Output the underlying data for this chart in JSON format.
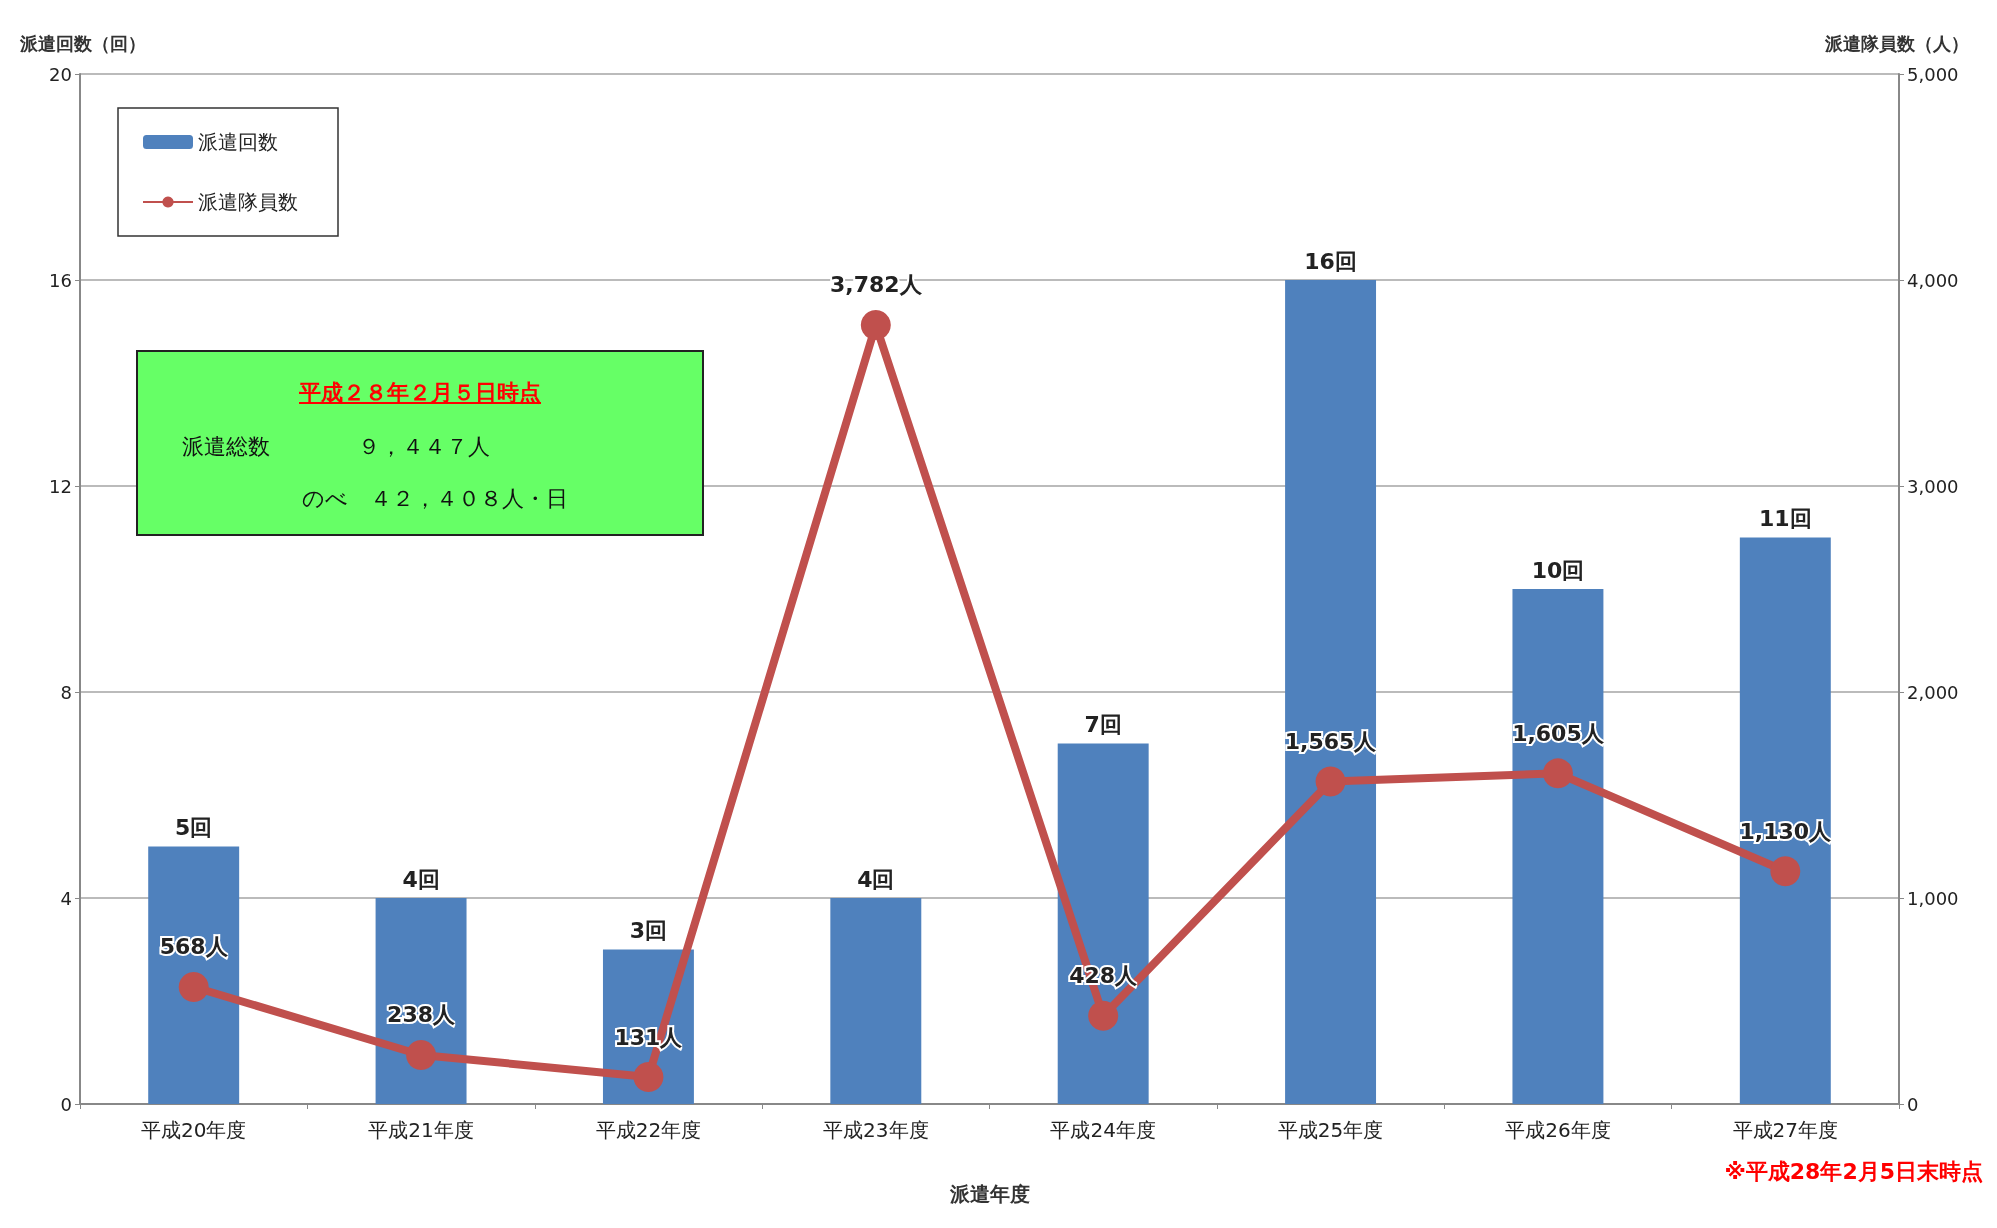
{
  "chart_data": {
    "type": "bar",
    "xlabel": "派遣年度",
    "ylabel": "派遣回数（回）",
    "y2label": "派遣隊員数（人）",
    "categories": [
      "平成20年度",
      "平成21年度",
      "平成22年度",
      "平成23年度",
      "平成24年度",
      "平成25年度",
      "平成26年度",
      "平成27年度"
    ],
    "series": [
      {
        "name": "派遣回数",
        "color": "#4f81bd",
        "values": [
          5,
          4,
          3,
          4,
          7,
          16,
          10,
          11
        ],
        "value_labels": [
          "5回",
          "4回",
          "3回",
          "4回",
          "7回",
          "16回",
          "10回",
          "11回"
        ]
      },
      {
        "name": "派遣隊員数",
        "type": "line",
        "axis": "y2",
        "color": "#c0504d",
        "marker": "circle",
        "values": [
          568,
          238,
          131,
          3782,
          428,
          1565,
          1605,
          1130
        ],
        "value_labels": [
          "568人",
          "238人",
          "131人",
          "3,782人",
          "428人",
          "1,565人",
          "1,605人",
          "1,130人"
        ]
      }
    ],
    "ylim": [
      0,
      20
    ],
    "yticks": [
      0,
      4,
      8,
      12,
      16,
      20
    ],
    "y2lim": [
      0,
      5000
    ],
    "y2ticks": [
      0,
      {
        "value": 1000,
        "label": "1,000"
      },
      {
        "value": 2000,
        "label": "2,000"
      },
      {
        "value": 3000,
        "label": "3,000"
      },
      {
        "value": 4000,
        "label": "4,000"
      },
      {
        "value": 5000,
        "label": "5,000"
      }
    ],
    "grid": "y",
    "legend": "top left",
    "annotations": [
      "平成２８年２月５日時点",
      "派遣総数　　　　９，４４７人",
      "のべ　４２，４０８人・日",
      "※平成28年2月5日末時点"
    ]
  }
}
